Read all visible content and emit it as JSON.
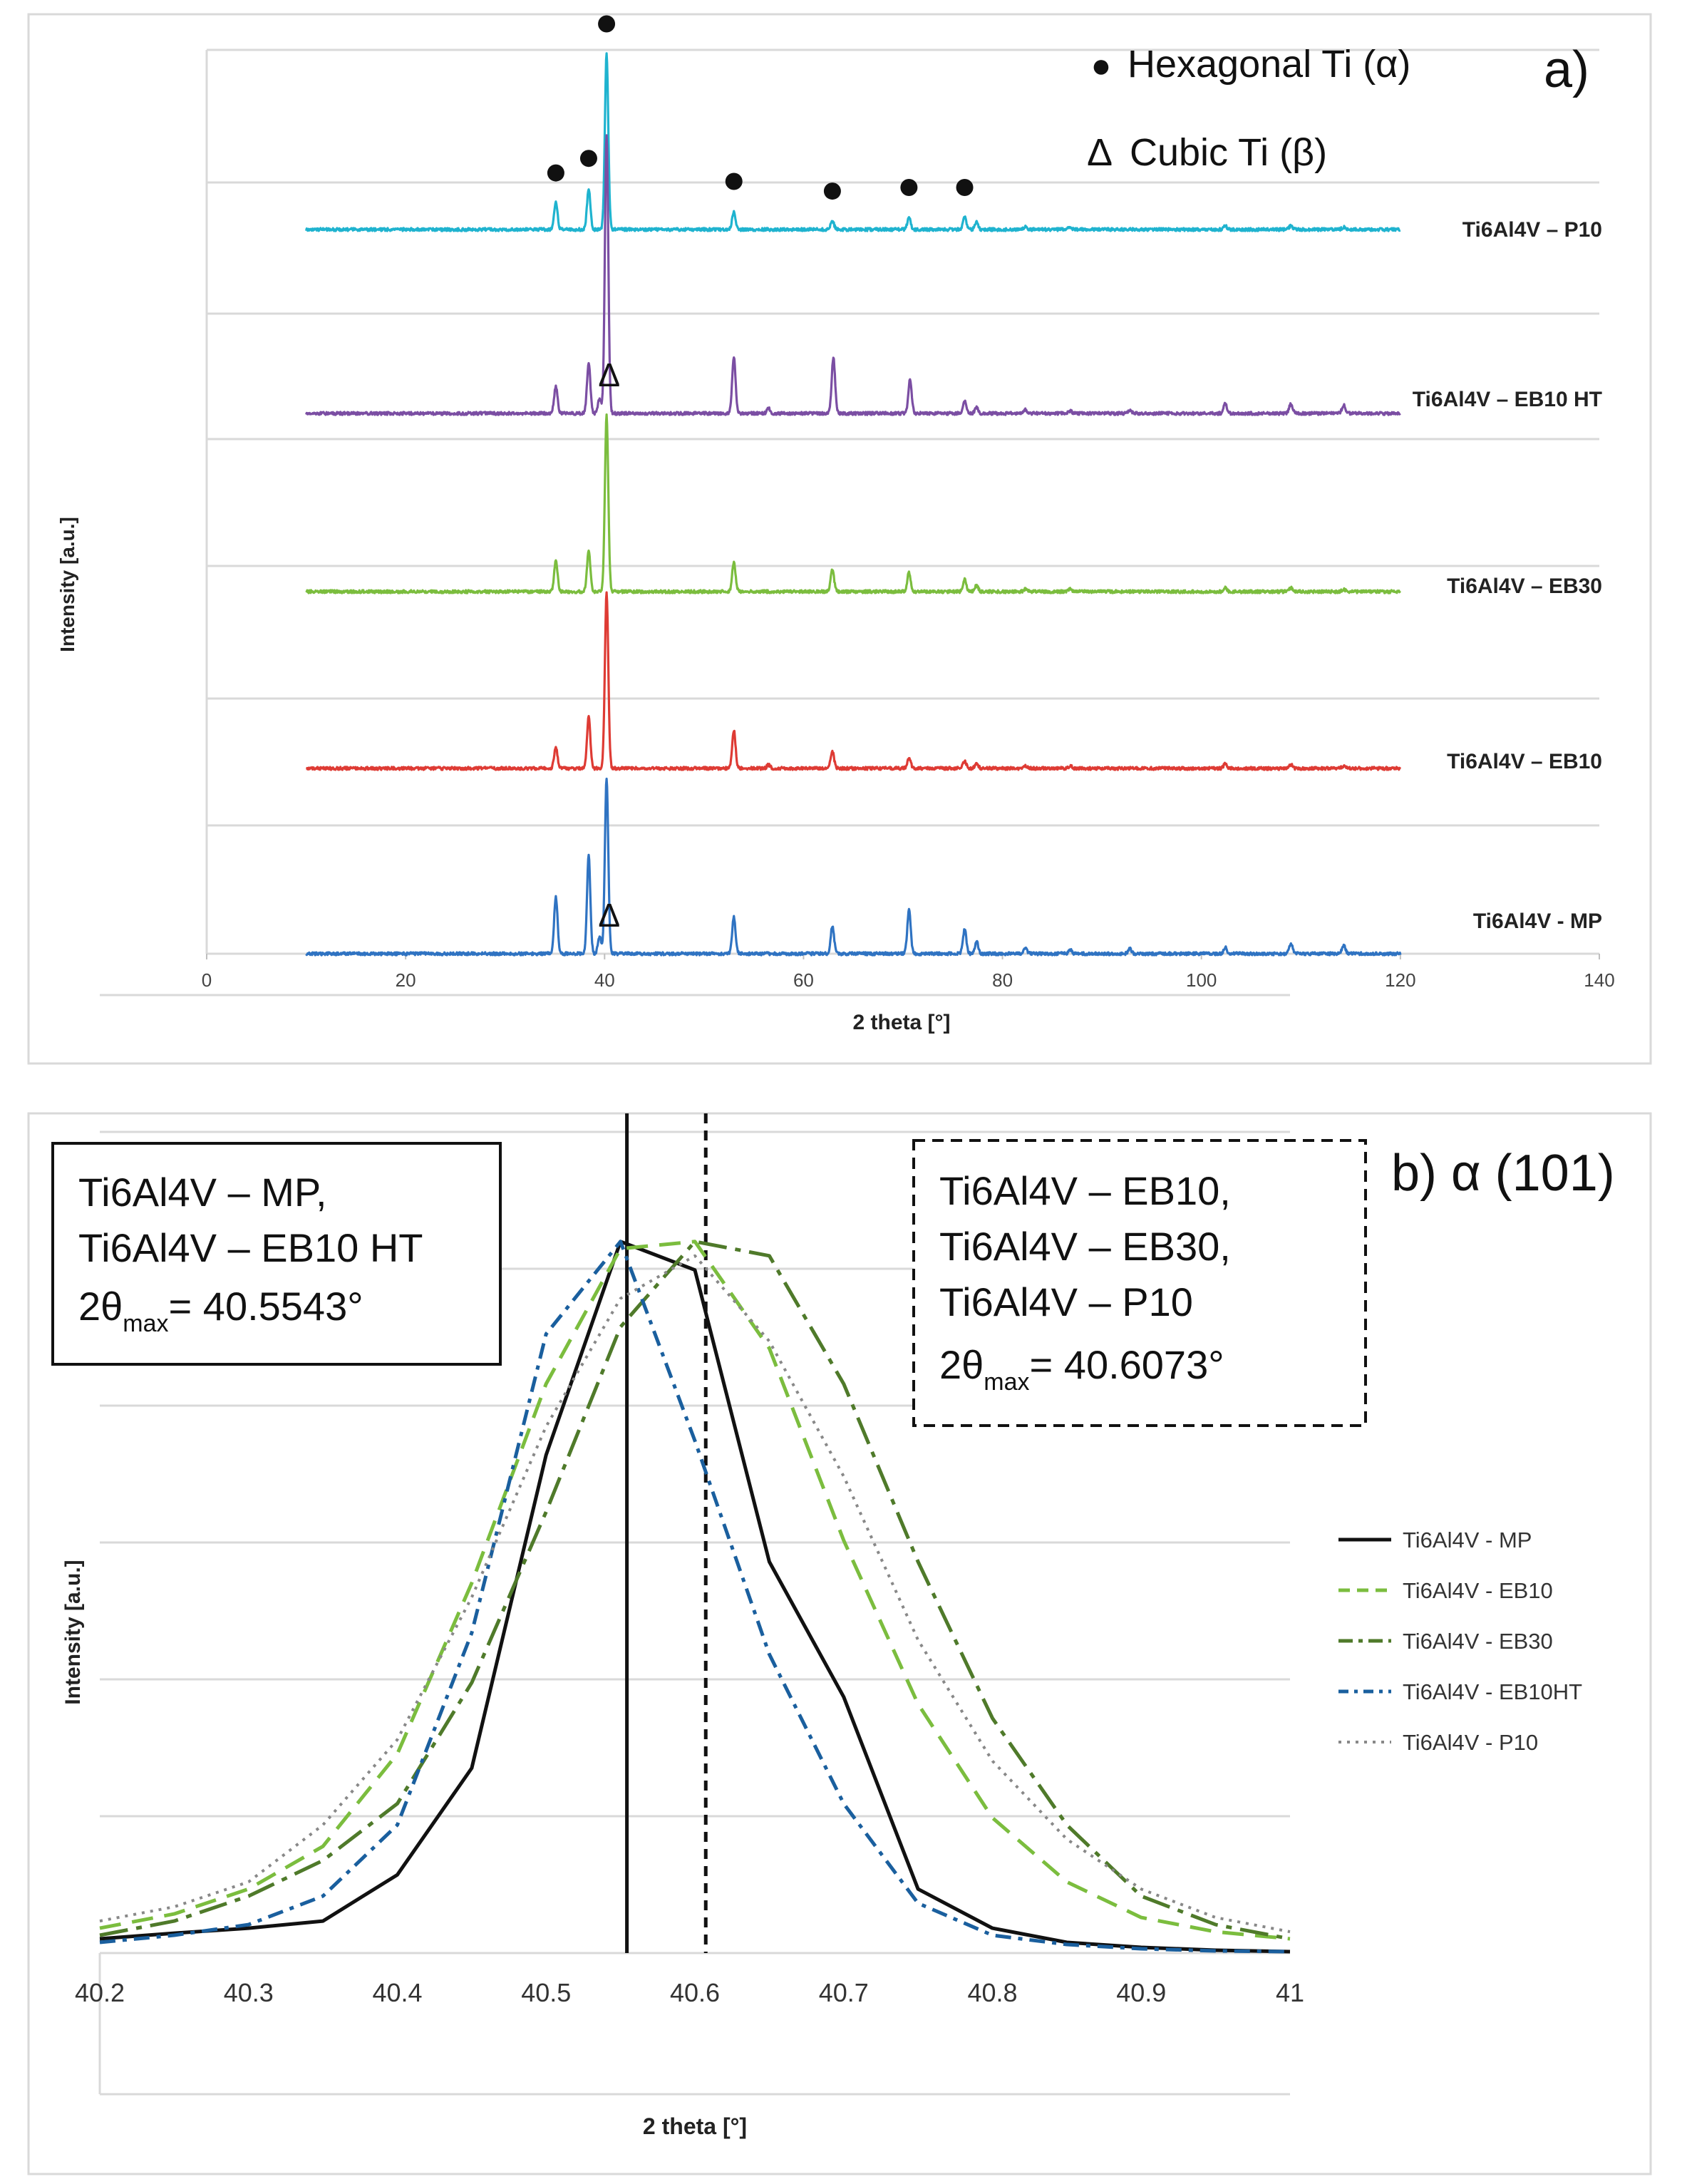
{
  "chart_data": [
    {
      "panel": "a)",
      "type": "line",
      "title": "",
      "xlabel": "2 theta [°]",
      "ylabel": "Intensity [a.u.]",
      "xlim": [
        0,
        140
      ],
      "x_ticks": [
        0,
        20,
        40,
        60,
        80,
        100,
        120,
        140
      ],
      "grid": "horizontal",
      "legend": {
        "hexagonal_marker": "●",
        "hexagonal_label": "Hexagonal Ti (α)",
        "cubic_marker": "Δ",
        "cubic_label": "Cubic Ti (β)"
      },
      "series": [
        {
          "name": "Ti6Al4V – P10",
          "label": "Ti6Al4V – P10",
          "color": "#1fb3cf",
          "x_range": [
            10,
            120
          ],
          "peaks": [
            [
              35.1,
              0.22
            ],
            [
              38.4,
              0.34
            ],
            [
              40.2,
              1.45
            ],
            [
              53.0,
              0.15
            ],
            [
              62.9,
              0.07
            ],
            [
              70.6,
              0.1
            ],
            [
              76.2,
              0.1
            ],
            [
              77.4,
              0.06
            ],
            [
              82.3,
              0.02
            ],
            [
              86.8,
              0.02
            ],
            [
              102.4,
              0.03
            ],
            [
              109.0,
              0.03
            ],
            [
              114.3,
              0.02
            ]
          ],
          "hexagonal_markers": [
            35.1,
            38.4,
            40.2,
            53.0,
            62.9,
            70.6,
            76.2
          ],
          "cubic_markers": []
        },
        {
          "name": "Ti6Al4V – EB10 HT",
          "label": "Ti6Al4V – EB10 HT",
          "color": "#7b4ea3",
          "x_range": [
            10,
            120
          ],
          "peaks": [
            [
              35.1,
              0.22
            ],
            [
              38.4,
              0.42
            ],
            [
              39.5,
              0.12
            ],
            [
              40.2,
              2.3
            ],
            [
              53.0,
              0.47
            ],
            [
              56.5,
              0.04
            ],
            [
              63.0,
              0.46
            ],
            [
              70.7,
              0.28
            ],
            [
              76.2,
              0.1
            ],
            [
              77.4,
              0.05
            ],
            [
              82.3,
              0.03
            ],
            [
              86.8,
              0.02
            ],
            [
              92.8,
              0.02
            ],
            [
              102.4,
              0.08
            ],
            [
              109.0,
              0.08
            ],
            [
              114.3,
              0.07
            ]
          ],
          "hexagonal_markers": [],
          "cubic_markers": [
            39.6
          ]
        },
        {
          "name": "Ti6Al4V – EB30",
          "label": "Ti6Al4V – EB30",
          "color": "#7bbd3e",
          "x_range": [
            10,
            120
          ],
          "peaks": [
            [
              35.1,
              0.25
            ],
            [
              38.4,
              0.34
            ],
            [
              40.2,
              1.45
            ],
            [
              53.0,
              0.24
            ],
            [
              62.9,
              0.18
            ],
            [
              70.6,
              0.16
            ],
            [
              76.2,
              0.1
            ],
            [
              77.4,
              0.05
            ],
            [
              82.3,
              0.02
            ],
            [
              86.8,
              0.02
            ],
            [
              102.4,
              0.03
            ],
            [
              109.0,
              0.03
            ],
            [
              114.3,
              0.02
            ]
          ],
          "hexagonal_markers": [],
          "cubic_markers": []
        },
        {
          "name": "Ti6Al4V – EB10",
          "label": "Ti6Al4V – EB10",
          "color": "#de3b34",
          "x_range": [
            10,
            120
          ],
          "peaks": [
            [
              35.1,
              0.17
            ],
            [
              38.4,
              0.43
            ],
            [
              40.2,
              1.45
            ],
            [
              53.0,
              0.31
            ],
            [
              56.5,
              0.03
            ],
            [
              62.9,
              0.14
            ],
            [
              70.6,
              0.09
            ],
            [
              76.2,
              0.06
            ],
            [
              77.4,
              0.04
            ],
            [
              82.3,
              0.02
            ],
            [
              86.8,
              0.02
            ],
            [
              102.4,
              0.04
            ],
            [
              109.0,
              0.03
            ],
            [
              114.3,
              0.02
            ]
          ],
          "hexagonal_markers": [],
          "cubic_markers": []
        },
        {
          "name": "Ti6Al4V - MP",
          "label": "Ti6Al4V - MP",
          "color": "#2f73c2",
          "x_range": [
            10,
            120
          ],
          "peaks": [
            [
              35.1,
              0.47
            ],
            [
              38.4,
              0.81
            ],
            [
              39.5,
              0.14
            ],
            [
              40.2,
              1.45
            ],
            [
              53.0,
              0.3
            ],
            [
              62.9,
              0.23
            ],
            [
              70.6,
              0.36
            ],
            [
              76.2,
              0.2
            ],
            [
              77.4,
              0.1
            ],
            [
              82.3,
              0.04
            ],
            [
              86.8,
              0.03
            ],
            [
              92.8,
              0.04
            ],
            [
              102.4,
              0.05
            ],
            [
              109.0,
              0.08
            ],
            [
              114.3,
              0.07
            ]
          ],
          "hexagonal_markers": [],
          "cubic_markers": [
            39.6
          ]
        }
      ]
    },
    {
      "panel": "b) α (101)",
      "type": "line",
      "title": "",
      "xlabel": "2 theta [°]",
      "ylabel": "Intensity [a.u.]",
      "xlim": [
        40.2,
        41
      ],
      "x_ticks": [
        40.2,
        40.3,
        40.4,
        40.5,
        40.6,
        40.7,
        40.8,
        40.9,
        41
      ],
      "x_tick_labels": [
        "40.2",
        "40.3",
        "40.4",
        "40.5",
        "40.6",
        "40.7",
        "40.8",
        "40.9",
        "41"
      ],
      "ylim": [
        0,
        1.1
      ],
      "grid": "horizontal",
      "legend_position": "right",
      "vertical_lines": [
        {
          "x": 40.5543,
          "style": "solid",
          "color": "#111111"
        },
        {
          "x": 40.6073,
          "style": "dashed",
          "color": "#111111"
        }
      ],
      "annotations": {
        "left_box": {
          "line1": "Ti6Al4V – MP,",
          "line2": "Ti6Al4V – EB10 HT",
          "value_prefix": "2θ",
          "value_sub": "max",
          "value_suffix": "= 40.5543°"
        },
        "right_box": {
          "line1": "Ti6Al4V – EB10,",
          "line2": "Ti6Al4V – EB30,",
          "line3": "Ti6Al4V – P10",
          "value_prefix": "2θ",
          "value_sub": "max",
          "value_suffix": "= 40.6073°"
        }
      },
      "x": [
        40.2,
        40.25,
        40.3,
        40.35,
        40.4,
        40.45,
        40.5,
        40.55,
        40.6,
        40.65,
        40.7,
        40.75,
        40.8,
        40.85,
        40.9,
        40.95,
        41.0
      ],
      "series": [
        {
          "name": "Ti6Al4V - MP",
          "color": "#111111",
          "dash": "",
          "width": 5,
          "values": [
            0.02,
            0.028,
            0.035,
            0.045,
            0.11,
            0.26,
            0.7,
            1.0,
            0.96,
            0.55,
            0.36,
            0.09,
            0.035,
            0.015,
            0.008,
            0.004,
            0.002
          ]
        },
        {
          "name": "Ti6Al4V - EB10",
          "color": "#7bbd3e",
          "dash": "30,16",
          "width": 5,
          "values": [
            0.035,
            0.055,
            0.09,
            0.15,
            0.28,
            0.52,
            0.8,
            0.99,
            1.0,
            0.85,
            0.58,
            0.35,
            0.19,
            0.1,
            0.05,
            0.03,
            0.02
          ]
        },
        {
          "name": "Ti6Al4V - EB30",
          "color": "#4f7a2a",
          "dash": "40,12,8,12",
          "width": 5,
          "values": [
            0.025,
            0.045,
            0.08,
            0.13,
            0.21,
            0.38,
            0.62,
            0.88,
            1.0,
            0.98,
            0.8,
            0.55,
            0.33,
            0.18,
            0.08,
            0.04,
            0.02
          ]
        },
        {
          "name": "Ti6Al4V - EB10HT",
          "color": "#1a5f9e",
          "dash": "22,10,6,10",
          "width": 5,
          "values": [
            0.015,
            0.025,
            0.04,
            0.08,
            0.18,
            0.45,
            0.87,
            1.0,
            0.72,
            0.42,
            0.21,
            0.07,
            0.025,
            0.012,
            0.006,
            0.003,
            0.002
          ]
        },
        {
          "name": "Ti6Al4V - P10",
          "color": "#888888",
          "dash": "4,8",
          "width": 4,
          "values": [
            0.045,
            0.065,
            0.1,
            0.18,
            0.3,
            0.5,
            0.74,
            0.92,
            0.98,
            0.86,
            0.67,
            0.44,
            0.27,
            0.16,
            0.09,
            0.05,
            0.03
          ]
        }
      ]
    }
  ]
}
